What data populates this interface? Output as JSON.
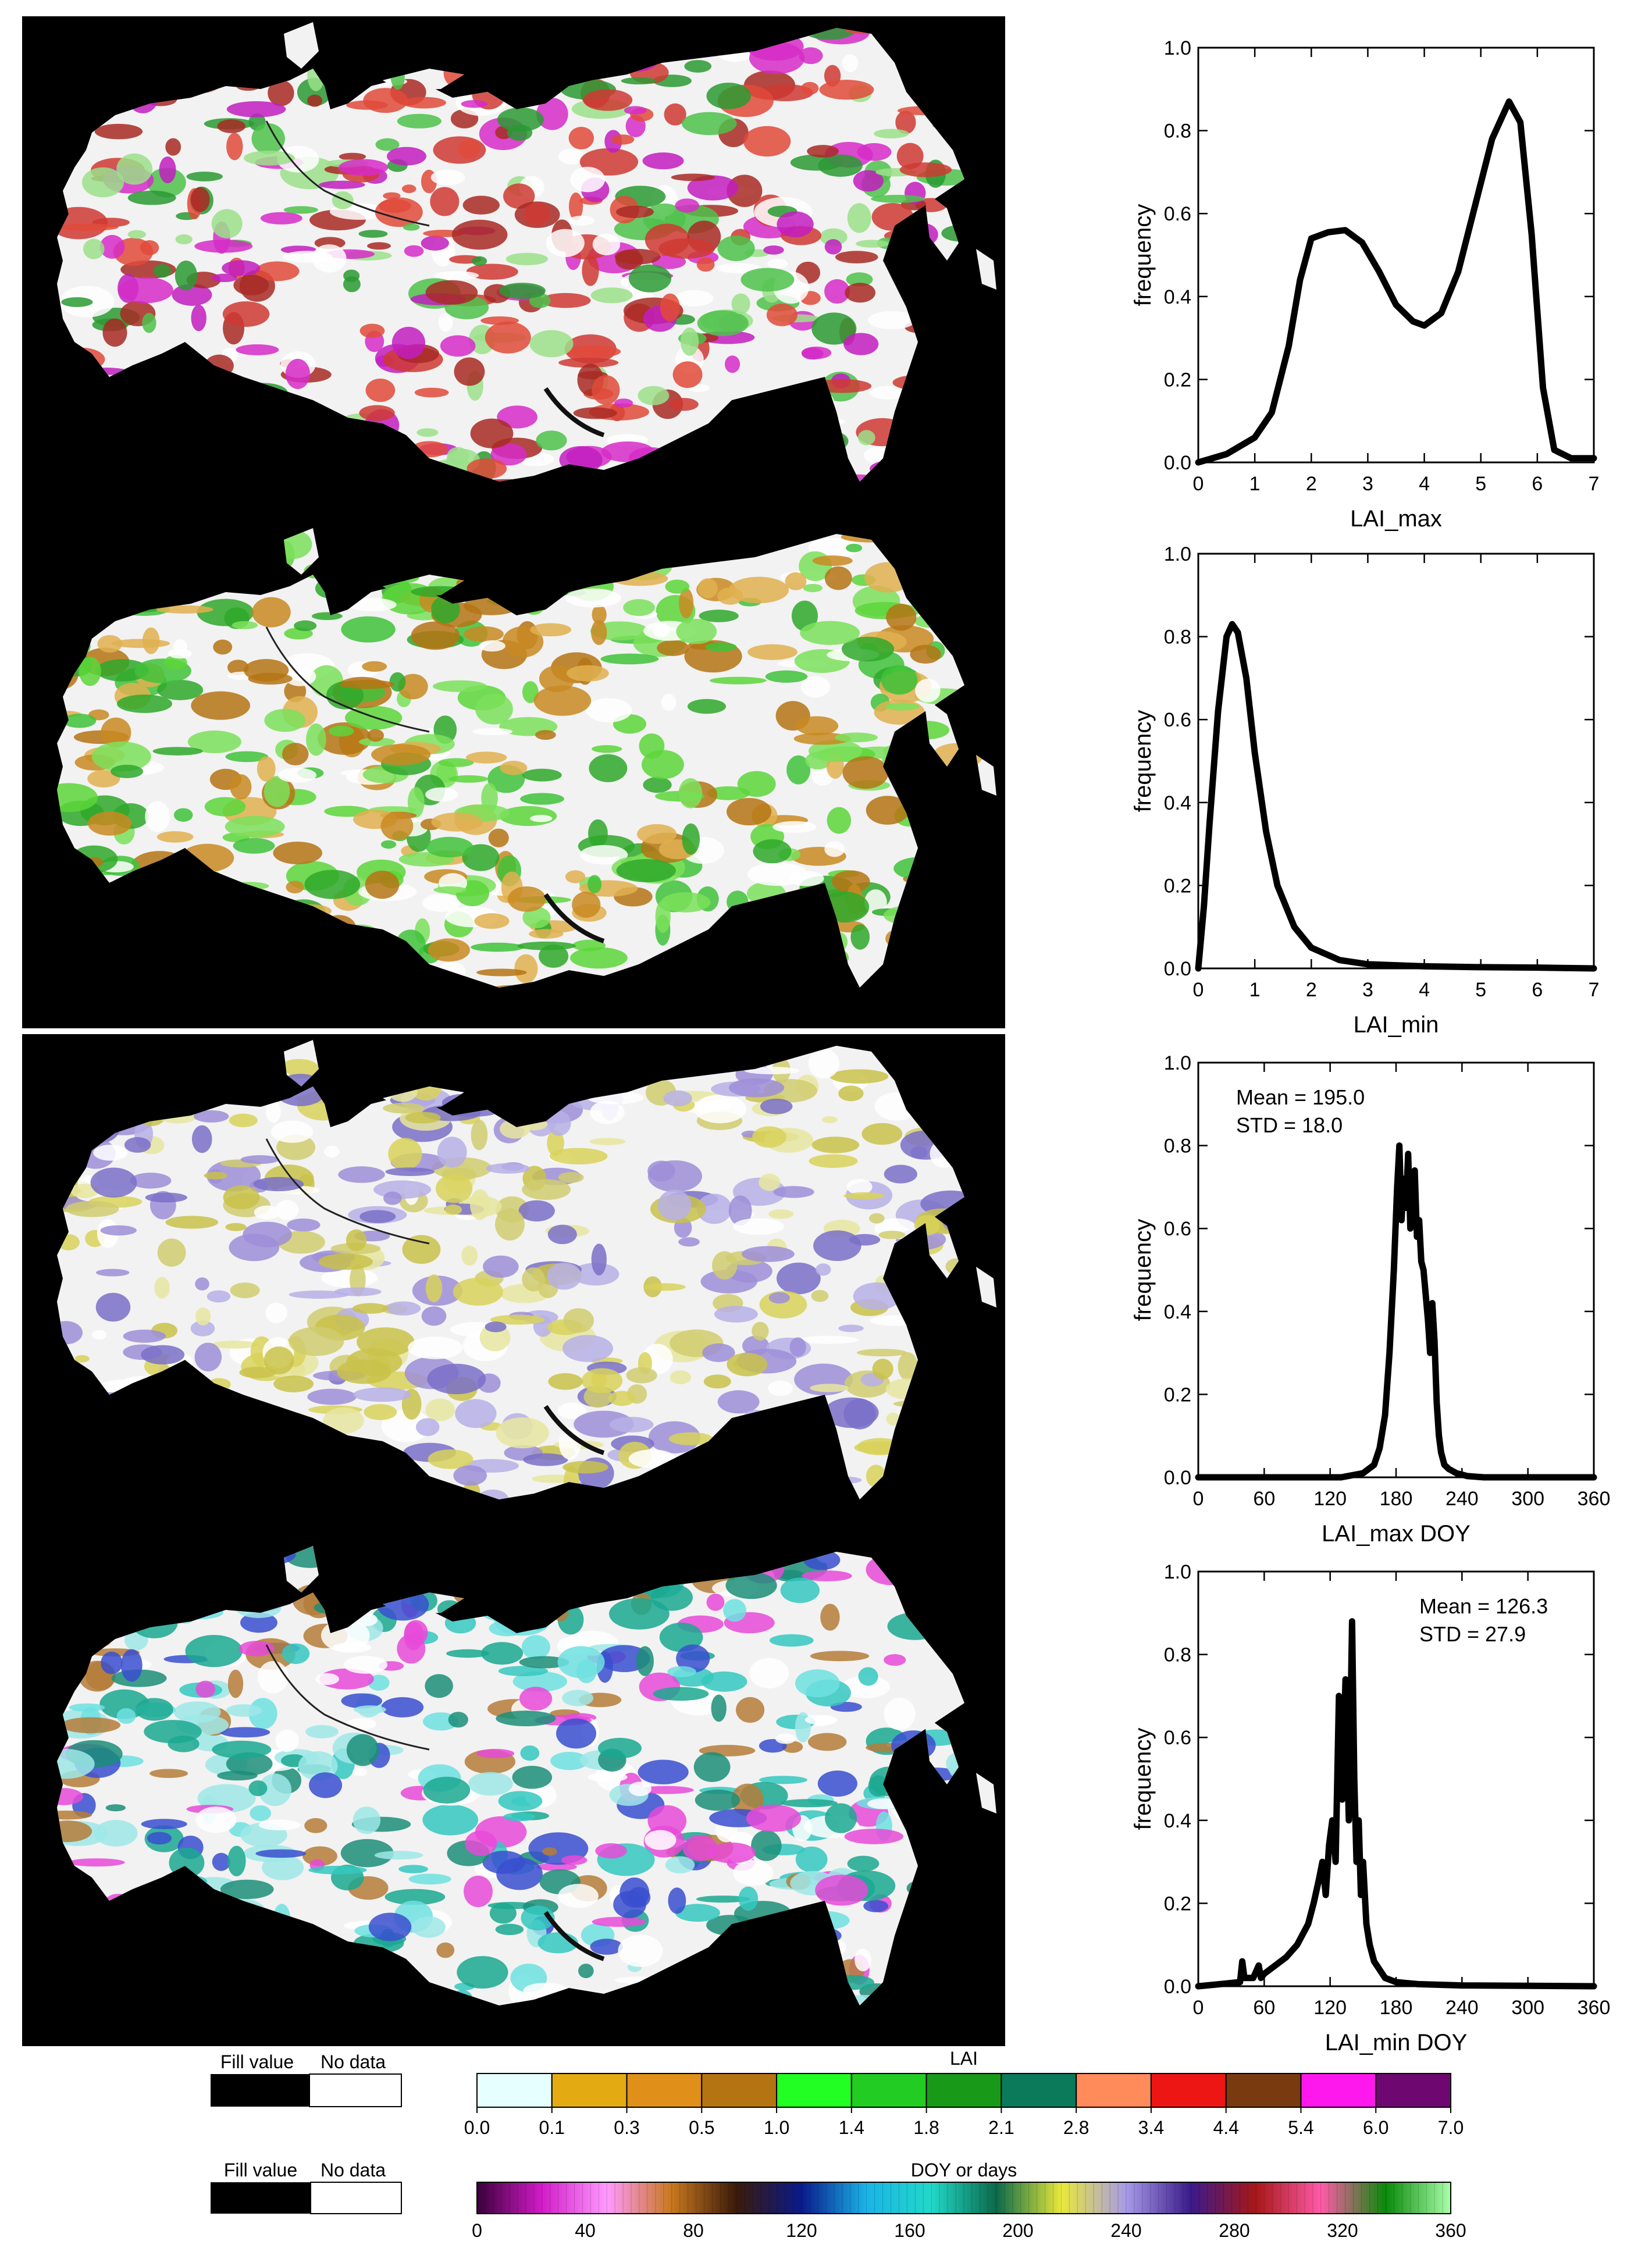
{
  "maps": [
    {
      "name": "LAI_max",
      "palette": [
        "#d62cc8",
        "#cf3a32",
        "#e04a3a",
        "#2a9a32",
        "#4ec24a",
        "#9be08a",
        "#ffffff",
        "#c21dbf",
        "#a82a24"
      ]
    },
    {
      "name": "LAI_min",
      "palette": [
        "#c98a22",
        "#b57414",
        "#5cd63a",
        "#3fc23a",
        "#7be05a",
        "#ffffff",
        "#e0b050",
        "#2fa82a"
      ]
    },
    {
      "name": "LAI_max DOY",
      "palette": [
        "#d8d25a",
        "#c9c24a",
        "#b7b0e6",
        "#9d8ed8",
        "#e8e6a0",
        "#ffffff",
        "#7a70c8",
        "#d0cc70"
      ]
    },
    {
      "name": "LAI_min DOY",
      "palette": [
        "#1aa890",
        "#34c8c0",
        "#6fe0e0",
        "#1b8e78",
        "#3a4fcf",
        "#e84ad8",
        "#ffffff",
        "#9fe8e8",
        "#b57c3a"
      ]
    }
  ],
  "chart_data": [
    {
      "type": "line",
      "xlabel": "LAI_max",
      "ylabel": "frequency",
      "xlim": [
        0,
        7
      ],
      "ylim": [
        0,
        1
      ],
      "xticks": [
        0,
        1,
        2,
        3,
        4,
        5,
        6,
        7
      ],
      "xtick_labels": [
        "0",
        "1",
        "2",
        "3",
        "4",
        "5",
        "6",
        "7"
      ],
      "yticks": [
        0,
        0.2,
        0.4,
        0.6,
        0.8,
        1.0
      ],
      "ytick_labels": [
        "0.0",
        "0.2",
        "0.4",
        "0.6",
        "0.8",
        "1.0"
      ],
      "x": [
        0,
        0.5,
        1.0,
        1.3,
        1.6,
        1.8,
        2.0,
        2.3,
        2.6,
        2.9,
        3.2,
        3.5,
        3.8,
        4.0,
        4.3,
        4.6,
        4.9,
        5.2,
        5.5,
        5.7,
        5.9,
        6.1,
        6.3,
        6.6,
        7.0
      ],
      "y": [
        0.0,
        0.02,
        0.06,
        0.12,
        0.28,
        0.44,
        0.54,
        0.555,
        0.56,
        0.53,
        0.46,
        0.38,
        0.34,
        0.33,
        0.36,
        0.46,
        0.62,
        0.78,
        0.87,
        0.82,
        0.55,
        0.18,
        0.03,
        0.01,
        0.01
      ],
      "stats": null
    },
    {
      "type": "line",
      "xlabel": "LAI_min",
      "ylabel": "frequency",
      "xlim": [
        0,
        7
      ],
      "ylim": [
        0,
        1
      ],
      "xticks": [
        0,
        1,
        2,
        3,
        4,
        5,
        6,
        7
      ],
      "xtick_labels": [
        "0",
        "1",
        "2",
        "3",
        "4",
        "5",
        "6",
        "7"
      ],
      "yticks": [
        0,
        0.2,
        0.4,
        0.6,
        0.8,
        1.0
      ],
      "ytick_labels": [
        "0.0",
        "0.2",
        "0.4",
        "0.6",
        "0.8",
        "1.0"
      ],
      "x": [
        0,
        0.1,
        0.2,
        0.35,
        0.5,
        0.6,
        0.7,
        0.85,
        1.0,
        1.2,
        1.4,
        1.7,
        2.0,
        2.5,
        3.0,
        4.0,
        5.0,
        6.0,
        7.0
      ],
      "y": [
        0.0,
        0.15,
        0.35,
        0.62,
        0.8,
        0.83,
        0.81,
        0.7,
        0.52,
        0.33,
        0.2,
        0.1,
        0.05,
        0.02,
        0.01,
        0.005,
        0.003,
        0.002,
        0.0
      ],
      "stats": null
    },
    {
      "type": "line",
      "xlabel": "LAI_max DOY",
      "ylabel": "frequency",
      "xlim": [
        0,
        360
      ],
      "ylim": [
        0,
        1
      ],
      "xticks": [
        0,
        60,
        120,
        180,
        240,
        300,
        360
      ],
      "xtick_labels": [
        "0",
        "60",
        "120",
        "180",
        "240",
        "300",
        "360"
      ],
      "yticks": [
        0,
        0.2,
        0.4,
        0.6,
        0.8,
        1.0
      ],
      "ytick_labels": [
        "0.0",
        "0.2",
        "0.4",
        "0.6",
        "0.8",
        "1.0"
      ],
      "x": [
        0,
        130,
        150,
        160,
        165,
        170,
        174,
        178,
        181,
        183,
        185,
        187,
        189,
        191,
        193,
        195,
        197,
        199,
        201,
        203,
        205,
        207,
        209,
        211,
        213,
        215,
        217,
        219,
        221,
        224,
        228,
        235,
        245,
        260,
        360
      ],
      "y": [
        0,
        0,
        0.01,
        0.03,
        0.07,
        0.15,
        0.3,
        0.5,
        0.7,
        0.8,
        0.62,
        0.72,
        0.65,
        0.78,
        0.6,
        0.7,
        0.74,
        0.58,
        0.62,
        0.52,
        0.5,
        0.44,
        0.38,
        0.3,
        0.42,
        0.33,
        0.18,
        0.1,
        0.06,
        0.03,
        0.02,
        0.01,
        0.003,
        0,
        0
      ],
      "stats": {
        "mean_label": "Mean = 195.0",
        "std_label": "STD = 18.0",
        "position": "top-left"
      }
    },
    {
      "type": "line",
      "xlabel": "LAI_min DOY",
      "ylabel": "frequency",
      "xlim": [
        0,
        360
      ],
      "ylim": [
        0,
        1
      ],
      "xticks": [
        0,
        60,
        120,
        180,
        240,
        300,
        360
      ],
      "xtick_labels": [
        "0",
        "60",
        "120",
        "180",
        "240",
        "300",
        "360"
      ],
      "yticks": [
        0,
        0.2,
        0.4,
        0.6,
        0.8,
        1.0
      ],
      "ytick_labels": [
        "0.0",
        "0.2",
        "0.4",
        "0.6",
        "0.8",
        "1.0"
      ],
      "x": [
        0,
        20,
        38,
        40,
        42,
        50,
        55,
        57,
        60,
        70,
        80,
        90,
        100,
        105,
        110,
        113,
        116,
        119,
        122,
        125,
        128,
        131,
        134,
        137,
        140,
        142,
        144,
        146,
        148,
        150,
        153,
        156,
        160,
        165,
        170,
        180,
        200,
        240,
        360
      ],
      "y": [
        0,
        0.005,
        0.01,
        0.06,
        0.02,
        0.02,
        0.05,
        0.02,
        0.03,
        0.05,
        0.07,
        0.1,
        0.15,
        0.2,
        0.26,
        0.3,
        0.22,
        0.34,
        0.4,
        0.3,
        0.7,
        0.45,
        0.74,
        0.4,
        0.88,
        0.5,
        0.3,
        0.4,
        0.22,
        0.3,
        0.15,
        0.1,
        0.06,
        0.04,
        0.02,
        0.01,
        0.005,
        0.002,
        0
      ],
      "stats": {
        "mean_label": "Mean = 126.3",
        "std_label": "STD = 27.9",
        "position": "top-right"
      }
    }
  ],
  "legends": {
    "lai": {
      "fill_value_label": "Fill value",
      "no_data_label": "No data",
      "title": "LAI",
      "colors": [
        "#e6ffff",
        "#e3aa12",
        "#e09018",
        "#b57412",
        "#22ff22",
        "#22cc22",
        "#189a18",
        "#0a7a5a",
        "#ff8a5a",
        "#ee1515",
        "#7a3a10",
        "#ff18ee",
        "#6e0870"
      ],
      "tick_labels": [
        "0.0",
        "0.1",
        "0.3",
        "0.5",
        "1.0",
        "1.4",
        "1.8",
        "2.1",
        "2.8",
        "3.4",
        "4.4",
        "5.4",
        "6.0",
        "7.0"
      ]
    },
    "doy": {
      "fill_value_label": "Fill value",
      "no_data_label": "No data",
      "title": "DOY or days",
      "tick_labels": [
        "0",
        "40",
        "80",
        "120",
        "160",
        "200",
        "240",
        "280",
        "320",
        "360"
      ],
      "stops": [
        "#3a003a",
        "#d21cc8",
        "#ff9aff",
        "#c8781e",
        "#3a1a0a",
        "#0a1a8a",
        "#1ab4e8",
        "#22d8c8",
        "#0a6a4a",
        "#e8e83a",
        "#a79ae8",
        "#3a1a8a",
        "#a81818",
        "#ff5aa8",
        "#0a8a0a",
        "#aaffaa"
      ]
    }
  }
}
